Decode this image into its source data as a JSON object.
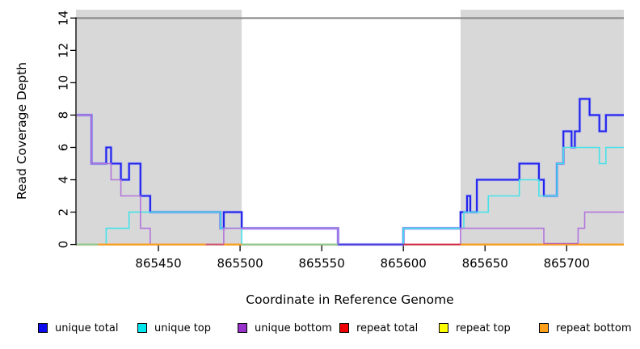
{
  "figure": {
    "background": "#FFFFFF"
  },
  "axes": {
    "x": {
      "label": "Coordinate in Reference Genome",
      "ticks": [
        865450,
        865500,
        865550,
        865600,
        865650,
        865700
      ],
      "range": [
        865399.5,
        865735
      ]
    },
    "y": {
      "label": "Read Coverage Depth",
      "ticks": [
        0,
        2,
        4,
        6,
        8,
        10,
        12,
        14
      ],
      "range": [
        0,
        14
      ]
    }
  },
  "legend": {
    "items": [
      {
        "label": "unique total",
        "color": "#0B0BEE"
      },
      {
        "label": "unique top",
        "color": "#00E5EE"
      },
      {
        "label": "unique bottom",
        "color": "#9932CC"
      },
      {
        "label": "repeat total",
        "color": "#EE0000"
      },
      {
        "label": "repeat top",
        "color": "#FFFF00"
      },
      {
        "label": "repeat bottom",
        "color": "#FF9F1C"
      }
    ]
  },
  "chart_data": {
    "type": "line",
    "title": "",
    "xlabel": "Coordinate in Reference Genome",
    "ylabel": "Read Coverage Depth",
    "xlim": [
      865399.5,
      865735
    ],
    "ylim": [
      0,
      14
    ],
    "grid": false,
    "legend_position": "bottom",
    "step_mode": "after",
    "repeat_regions": [
      [
        865399.5,
        865501
      ],
      [
        865635,
        865735
      ]
    ],
    "region_fill": "#D8D8D8",
    "top_boundary_line": {
      "y": 14,
      "color": "#858585"
    },
    "series": [
      {
        "name": "unique total",
        "color": "#2222EE",
        "width": 2.1,
        "halo": "#9AA6F2",
        "steps": [
          [
            865400,
            8
          ],
          [
            865409,
            5
          ],
          [
            865418,
            6
          ],
          [
            865421,
            5
          ],
          [
            865427,
            4
          ],
          [
            865432,
            5
          ],
          [
            865439,
            3
          ],
          [
            865445,
            2
          ],
          [
            865488,
            1
          ],
          [
            865490,
            2
          ],
          [
            865501,
            1
          ],
          [
            865560,
            0
          ],
          [
            865600,
            1
          ],
          [
            865635,
            2
          ],
          [
            865639,
            3
          ],
          [
            865641,
            2
          ],
          [
            865645,
            4
          ],
          [
            865671,
            5
          ],
          [
            865683,
            4
          ],
          [
            865686,
            3
          ],
          [
            865694,
            5
          ],
          [
            865698,
            7
          ],
          [
            865703,
            6
          ],
          [
            865705,
            7
          ],
          [
            865708,
            9
          ],
          [
            865714,
            8
          ],
          [
            865720,
            7
          ],
          [
            865724,
            8
          ]
        ]
      },
      {
        "name": "unique top",
        "color": "#45E2EA",
        "width": 1.6,
        "steps": [
          [
            865400,
            0
          ],
          [
            865418,
            1
          ],
          [
            865432,
            2
          ],
          [
            865488,
            1
          ],
          [
            865501,
            0
          ],
          [
            865600,
            1
          ],
          [
            865637,
            2
          ],
          [
            865652,
            3
          ],
          [
            865671,
            4
          ],
          [
            865683,
            3
          ],
          [
            865694,
            5
          ],
          [
            865698,
            6
          ],
          [
            865720,
            5
          ],
          [
            865724,
            6
          ]
        ]
      },
      {
        "name": "unique bottom",
        "color": "#B275DC",
        "width": 1.6,
        "steps": [
          [
            865400,
            8
          ],
          [
            865409,
            5
          ],
          [
            865421,
            4
          ],
          [
            865427,
            3
          ],
          [
            865439,
            1
          ],
          [
            865445,
            0
          ],
          [
            865490,
            1
          ],
          [
            865560,
            0
          ],
          [
            865635,
            1
          ],
          [
            865686,
            0
          ],
          [
            865707,
            1
          ],
          [
            865711,
            2
          ]
        ]
      },
      {
        "name": "repeat total",
        "color": "#D92045",
        "width": 1.6,
        "steps": [
          [
            865400,
            0
          ]
        ]
      },
      {
        "name": "repeat top",
        "color": "#F5E616",
        "width": 1.6,
        "steps": [
          [
            865400,
            0
          ]
        ]
      },
      {
        "name": "repeat bottom",
        "color": "#FF9F1C",
        "width": 2,
        "steps": [
          [
            865400,
            0
          ]
        ]
      }
    ],
    "baseline_overlap_segments": [
      {
        "x1": 865400,
        "x2": 865413,
        "color": "#8FCB8F",
        "width": 1.6
      },
      {
        "x1": 865413,
        "x2": 865479,
        "color": "#FF9F1C",
        "width": 2.0
      },
      {
        "x1": 865479,
        "x2": 865490,
        "color": "#D24D72",
        "width": 1.6
      },
      {
        "x1": 865490,
        "x2": 865501,
        "color": "#FF9F1C",
        "width": 2.0
      },
      {
        "x1": 865501,
        "x2": 865560,
        "color": "#8FCB8F",
        "width": 1.6
      },
      {
        "x1": 865560,
        "x2": 865600,
        "color": "#4A3BE0",
        "width": 1.8
      },
      {
        "x1": 865600,
        "x2": 865635,
        "color": "#D92045",
        "width": 1.6
      },
      {
        "x1": 865635,
        "x2": 865735,
        "color": "#FF9F1C",
        "width": 2.0
      },
      {
        "x1": 865686,
        "x2": 865707,
        "color": "#BC62A8",
        "width": 1.4
      }
    ]
  }
}
